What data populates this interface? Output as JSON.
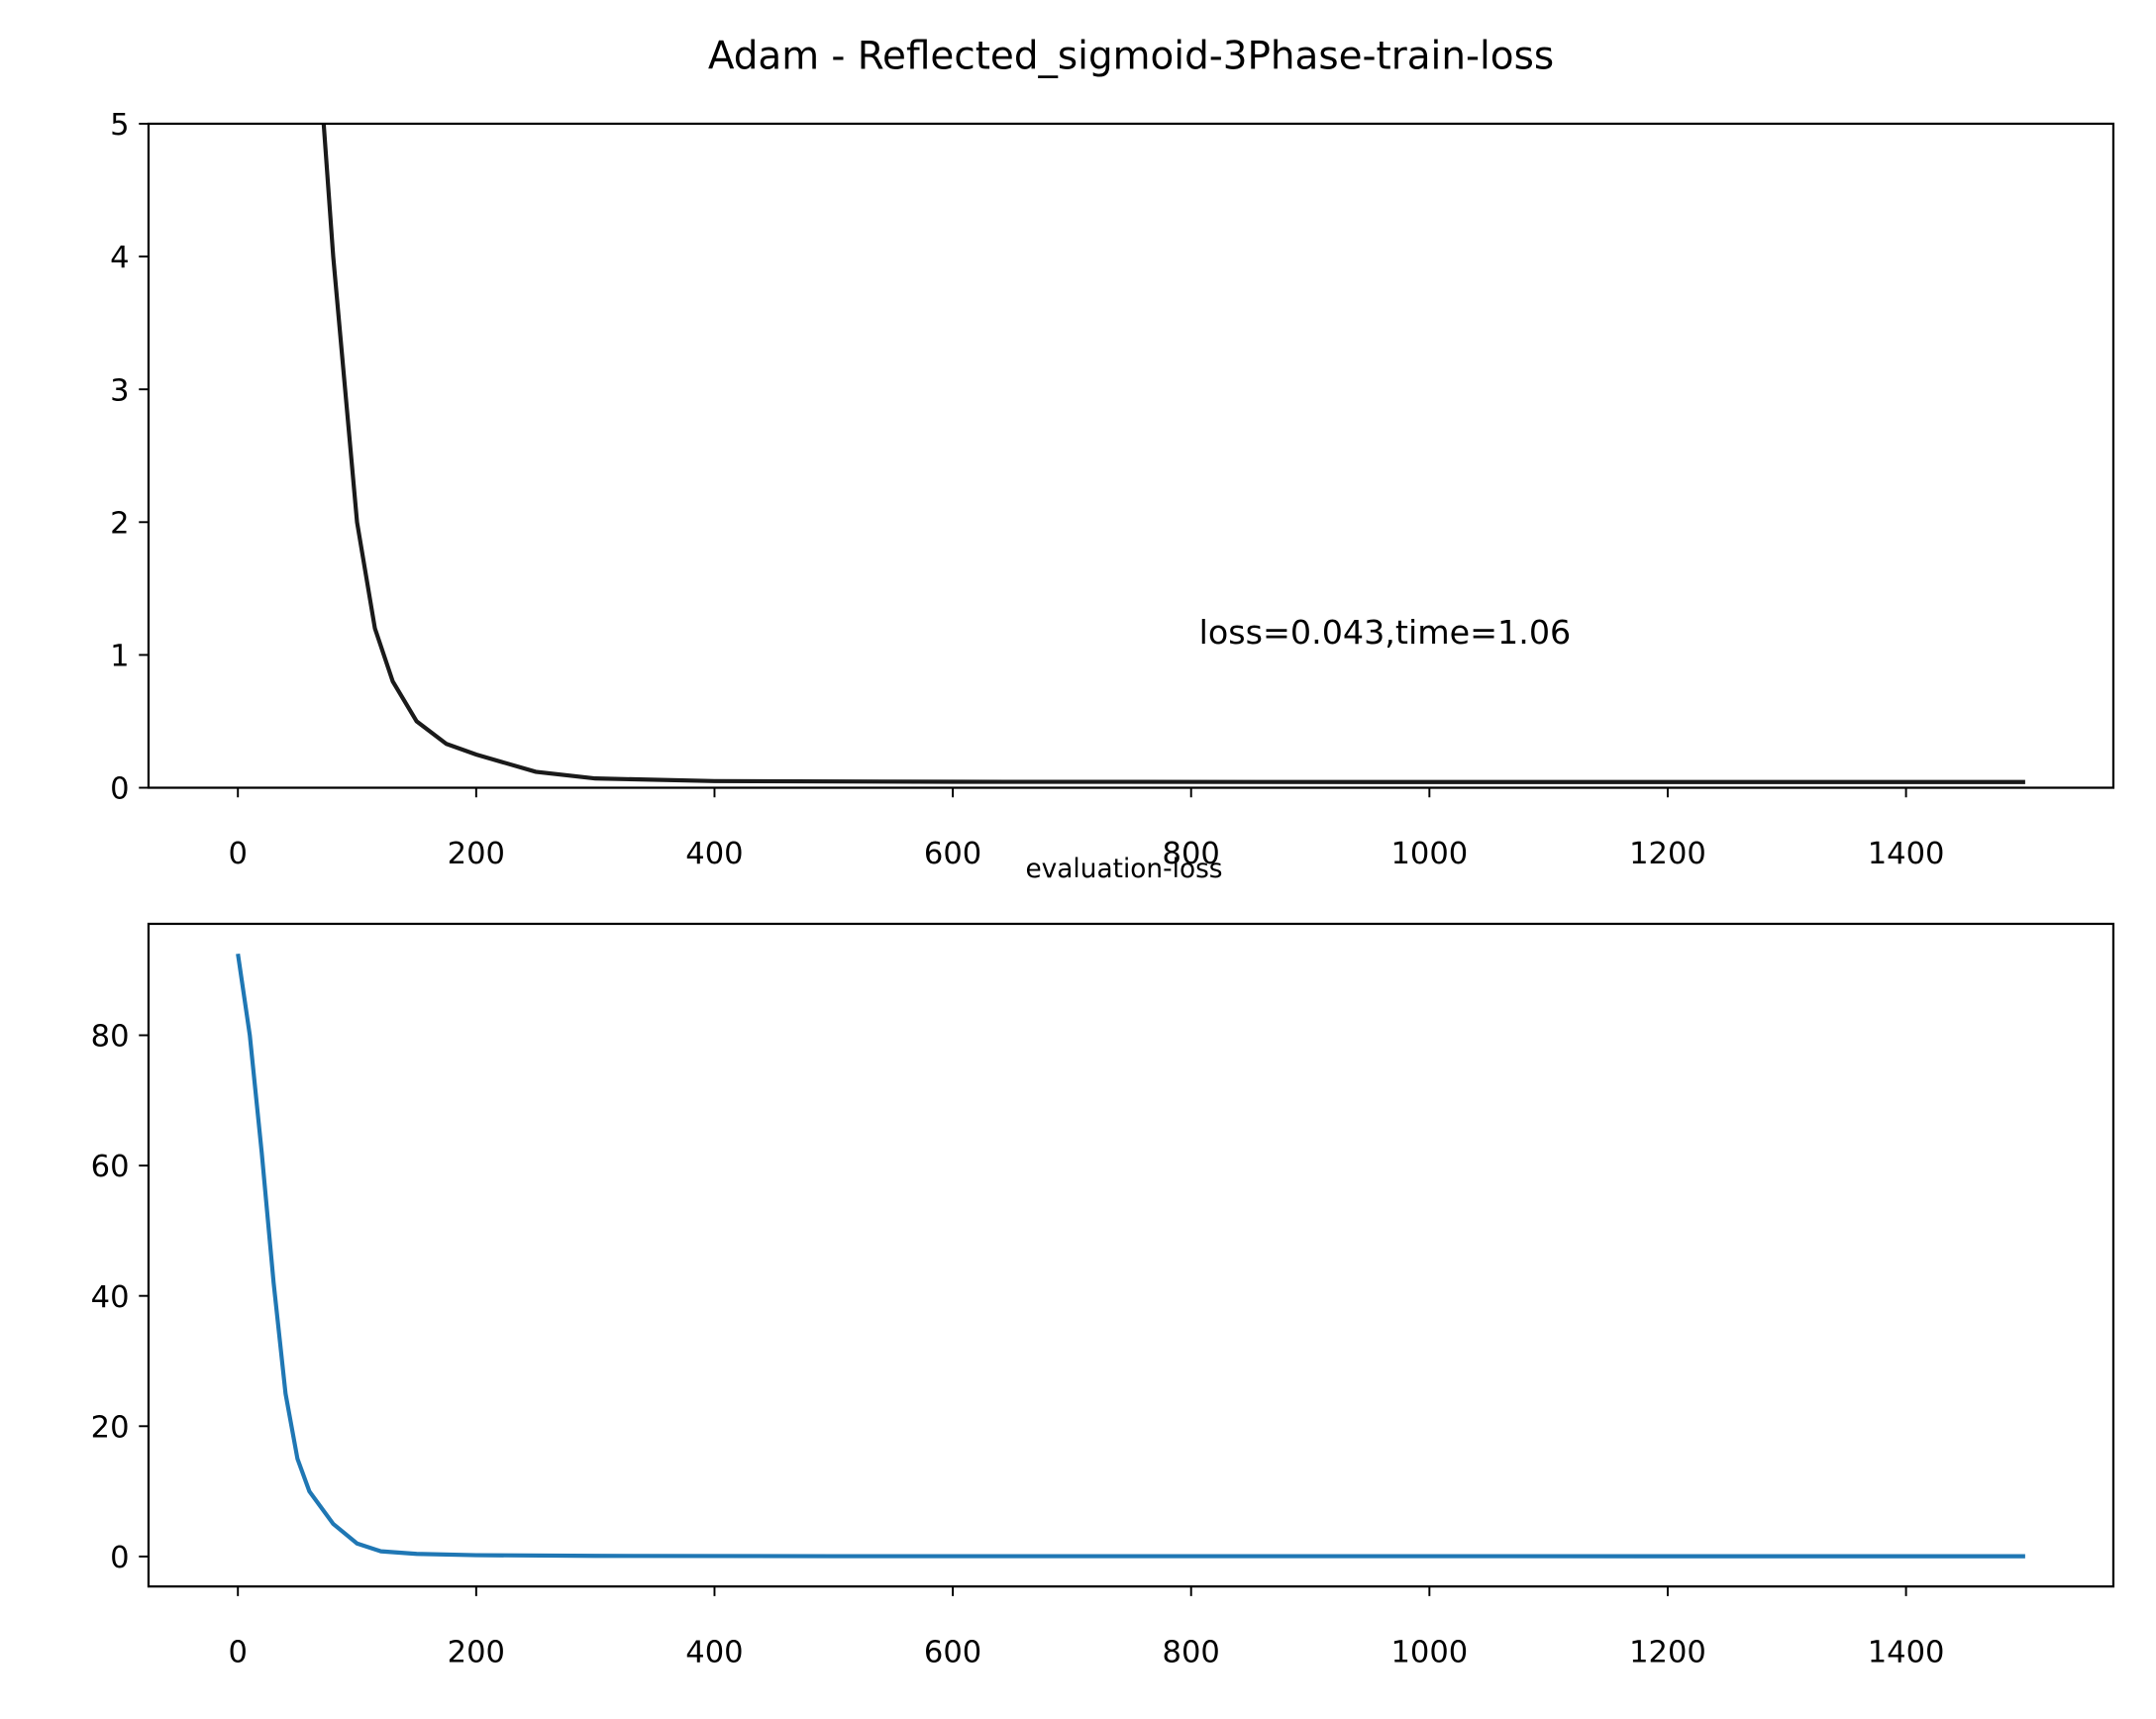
{
  "chart_data": [
    {
      "type": "line",
      "title": "Adam - Reflected_sigmoid-3Phase-train-loss",
      "annotation": "loss=0.043,time=1.06",
      "xlim": [
        -75,
        1574
      ],
      "xticks": [
        0,
        200,
        400,
        600,
        800,
        1000,
        1200,
        1400
      ],
      "ylim": [
        0,
        5
      ],
      "yticks": [
        0,
        1,
        2,
        3,
        4,
        5
      ],
      "series": [
        {
          "color": "#1a1a1a",
          "x": [
            72,
            80,
            90,
            100,
            115,
            130,
            150,
            175,
            200,
            250,
            300,
            400,
            600,
            1000,
            1500
          ],
          "values": [
            5,
            4,
            3,
            2,
            1.2,
            0.8,
            0.5,
            0.33,
            0.25,
            0.12,
            0.07,
            0.05,
            0.045,
            0.043,
            0.043
          ]
        }
      ]
    },
    {
      "type": "line",
      "title": "evaluation-loss",
      "xlim": [
        -75,
        1574
      ],
      "xticks": [
        0,
        200,
        400,
        600,
        800,
        1000,
        1200,
        1400
      ],
      "ylim": [
        -4.6,
        97.1
      ],
      "yticks": [
        0,
        20,
        40,
        60,
        80
      ],
      "series": [
        {
          "color": "#1f77b4",
          "x": [
            0,
            10,
            20,
            30,
            40,
            50,
            60,
            80,
            100,
            120,
            150,
            200,
            300,
            500,
            1500
          ],
          "values": [
            92.5,
            80,
            62,
            42,
            25,
            15,
            10,
            5,
            2,
            0.8,
            0.4,
            0.2,
            0.1,
            0.05,
            0.04
          ]
        }
      ]
    }
  ]
}
